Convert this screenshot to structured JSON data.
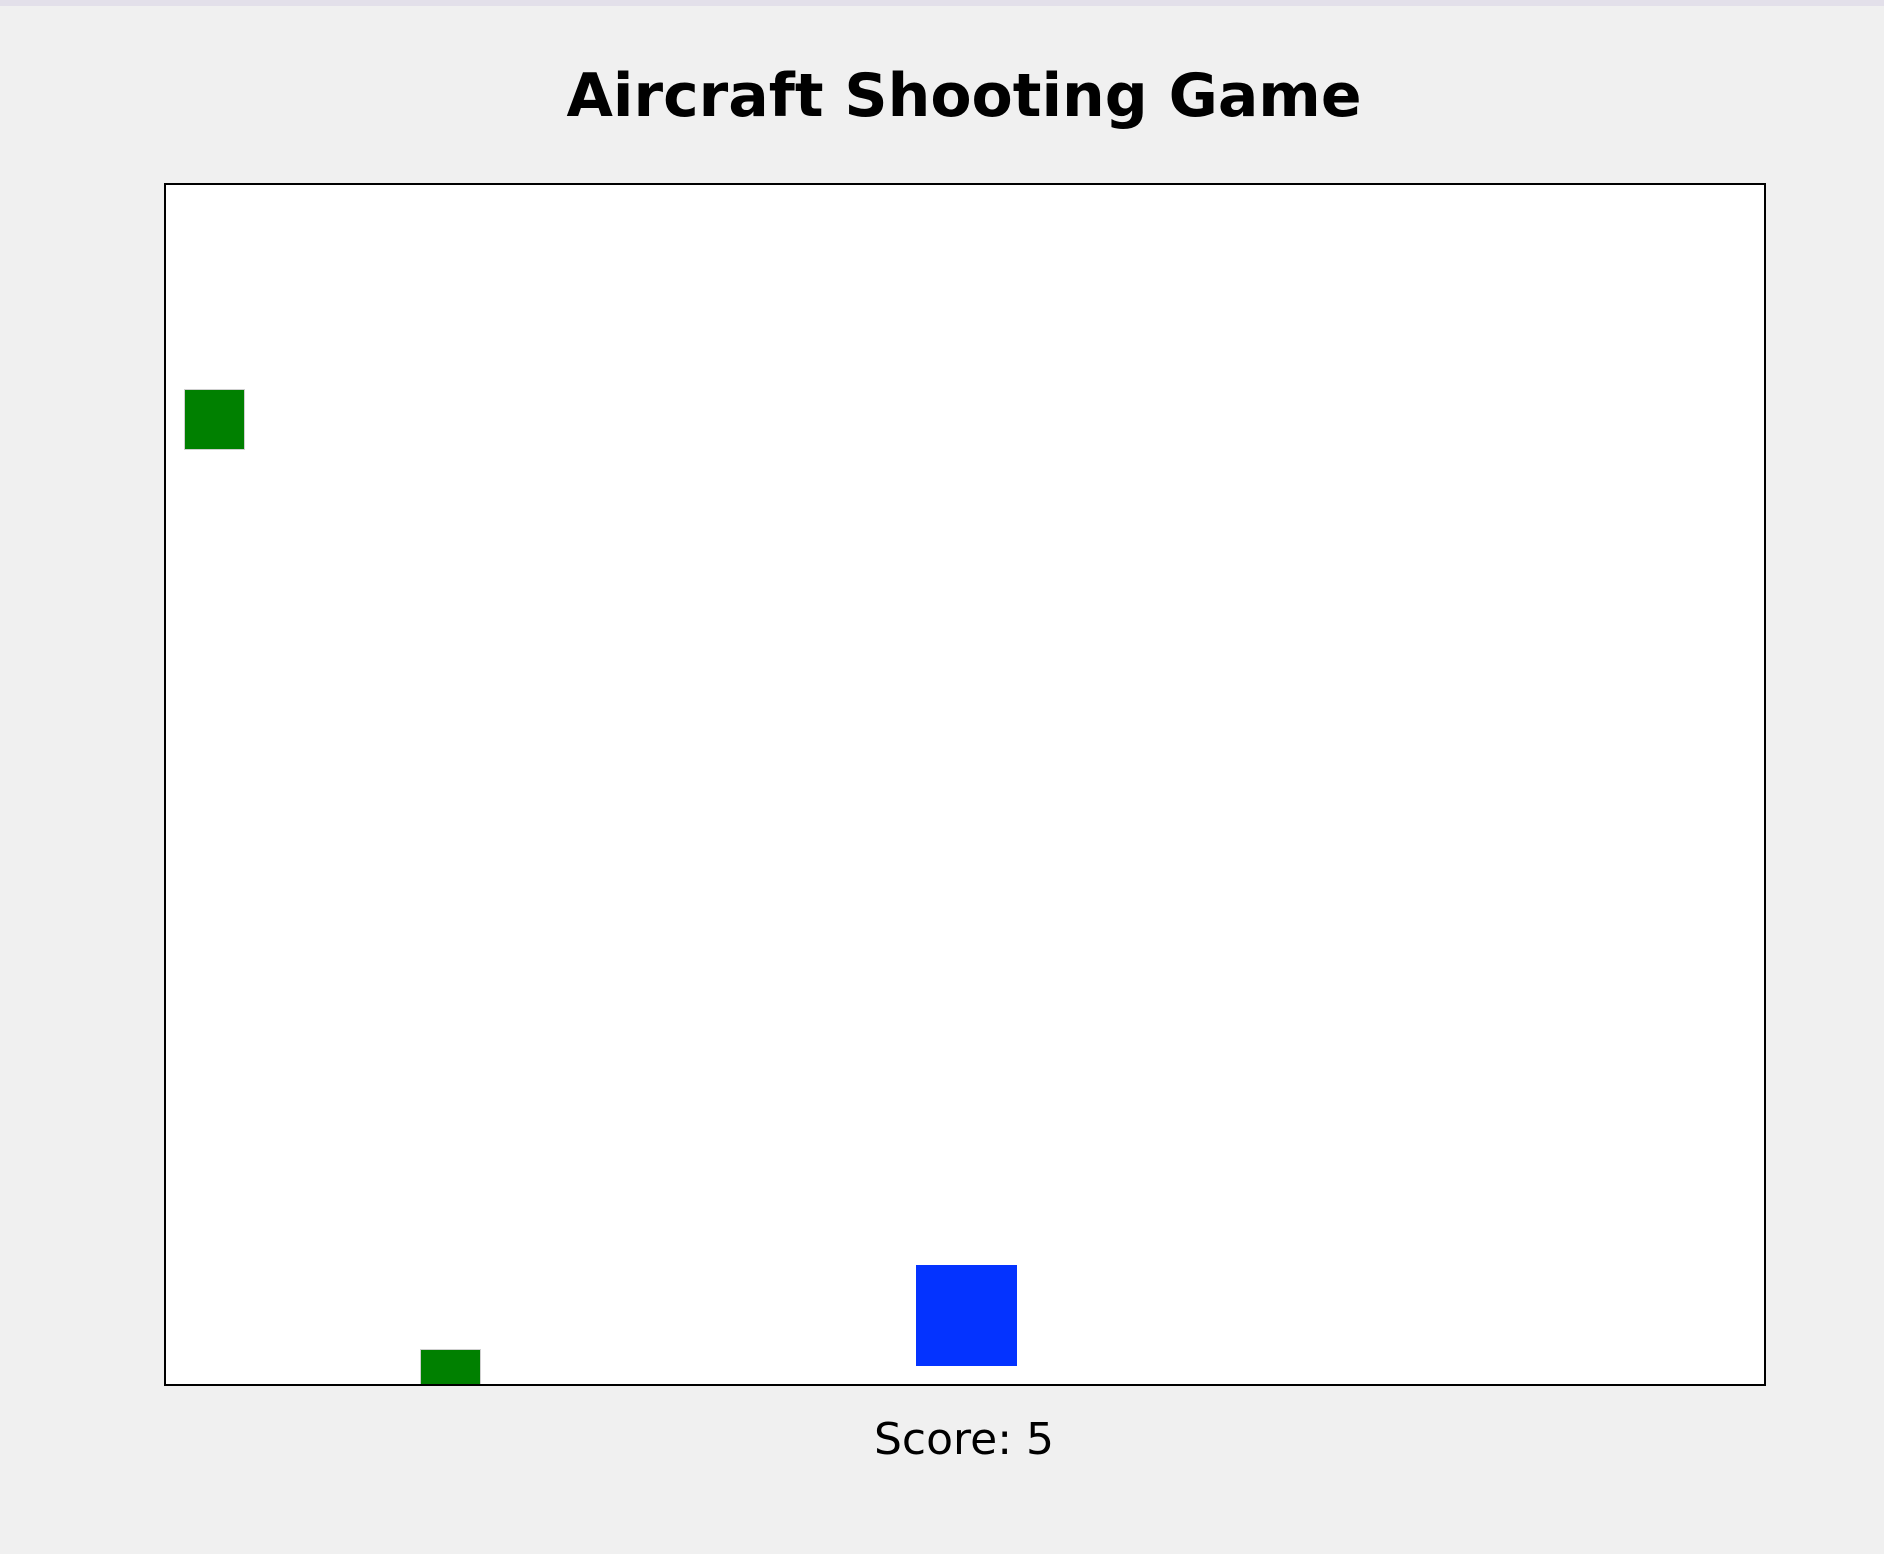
{
  "title": "Aircraft Shooting Game",
  "score": {
    "label": "Score: 5"
  },
  "colors": {
    "page_background": "#f0f0f0",
    "canvas_background": "#ffffff",
    "enemy": "#008000",
    "player": "#0433ff",
    "border": "#000000"
  },
  "game": {
    "player_icon": "blue-square",
    "enemy_icon": "green-square"
  }
}
